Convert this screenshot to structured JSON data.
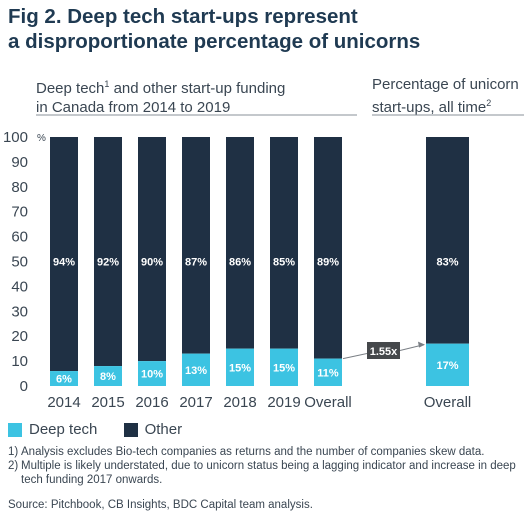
{
  "title_line1": "Fig 2. Deep tech start-ups represent",
  "title_line2": "a disproportionate percentage of unicorns",
  "colors": {
    "deep_tech": "#3cc3e2",
    "other": "#1f3044",
    "ratio_box": "#45484b"
  },
  "chart_data": [
    {
      "type": "bar",
      "stacked": true,
      "subtitle_part1": "Deep tech",
      "subtitle_footnote": "1",
      "subtitle_part2": " and other start-up funding",
      "subtitle_line2": "in Canada from 2014 to 2019",
      "y_unit": "%",
      "ylim": [
        0,
        100
      ],
      "yticks": [
        "0",
        "10",
        "20",
        "30",
        "40",
        "50",
        "60",
        "70",
        "80",
        "90",
        "100"
      ],
      "grid": false,
      "categories": [
        "2014",
        "2015",
        "2016",
        "2017",
        "2018",
        "2019",
        "Overall"
      ],
      "series": [
        {
          "name": "Deep tech",
          "values": [
            6,
            8,
            10,
            13,
            15,
            15,
            11
          ],
          "labels": [
            "6%",
            "8%",
            "10%",
            "13%",
            "15%",
            "15%",
            "11%"
          ]
        },
        {
          "name": "Other",
          "values": [
            94,
            92,
            90,
            87,
            86,
            85,
            89
          ],
          "labels": [
            "94%",
            "92%",
            "90%",
            "87%",
            "86%",
            "85%",
            "89%"
          ]
        }
      ]
    },
    {
      "type": "bar",
      "stacked": true,
      "subtitle_line1": "Percentage of unicorn",
      "subtitle_line2a": "start-ups, all time",
      "subtitle_footnote": "2",
      "ylim": [
        0,
        100
      ],
      "categories": [
        "Overall"
      ],
      "series": [
        {
          "name": "Deep tech",
          "values": [
            17
          ],
          "labels": [
            "17%"
          ]
        },
        {
          "name": "Other",
          "values": [
            83
          ],
          "labels": [
            "83%"
          ]
        }
      ],
      "annotation": "1.55x"
    }
  ],
  "legend": {
    "deep_tech": "Deep tech",
    "other": "Other",
    "position": "bottom-left"
  },
  "notes": [
    {
      "num": "1)",
      "text": "Analysis excludes Bio-tech companies as returns and the number of companies skew data."
    },
    {
      "num": "2)",
      "text": "Multiple is likely understated, due to unicorn status being a lagging indicator and increase in deep tech funding 2017 onwards."
    }
  ],
  "source": "Source: Pitchbook, CB Insights, BDC Capital team analysis."
}
